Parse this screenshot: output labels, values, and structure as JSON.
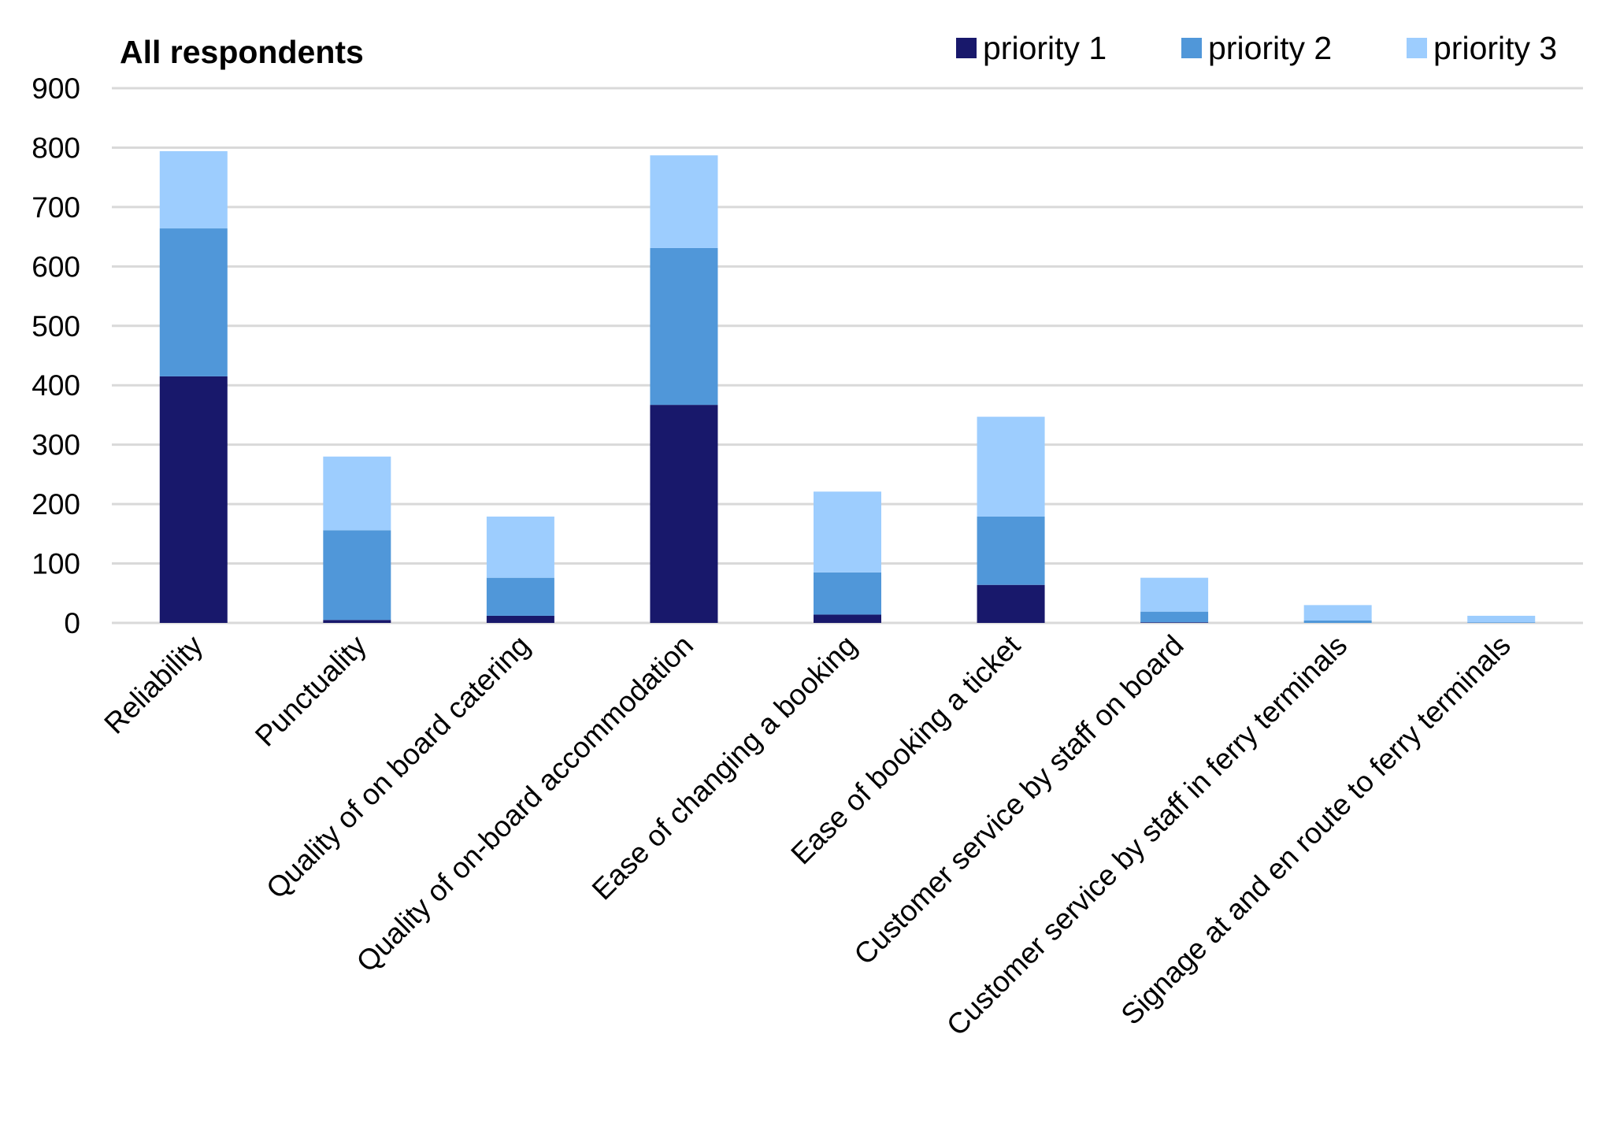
{
  "chart_data": {
    "type": "bar",
    "stacked": true,
    "title": "All respondents",
    "xlabel": "",
    "ylabel": "",
    "ylim": [
      0,
      900
    ],
    "yticks": [
      0,
      100,
      200,
      300,
      400,
      500,
      600,
      700,
      800,
      900
    ],
    "grid": true,
    "legend_position": "top-right",
    "categories": [
      "Reliability",
      "Punctuality",
      "Quality of on board catering",
      "Quality of on-board accommodation",
      "Ease of changing a booking",
      "Ease of booking a ticket",
      "Customer service by staff on board",
      "Customer service by staff in ferry terminals",
      "Signage at and en route to ferry terminals"
    ],
    "series": [
      {
        "name": "priority 1",
        "color": "#18186b",
        "values": [
          415,
          5,
          12,
          367,
          14,
          64,
          1,
          0,
          0
        ]
      },
      {
        "name": "priority 2",
        "color": "#5097d9",
        "values": [
          249,
          151,
          64,
          264,
          71,
          115,
          18,
          4,
          1
        ]
      },
      {
        "name": "priority 3",
        "color": "#9dcdfe",
        "values": [
          130,
          124,
          103,
          156,
          136,
          168,
          57,
          26,
          11
        ]
      }
    ]
  }
}
